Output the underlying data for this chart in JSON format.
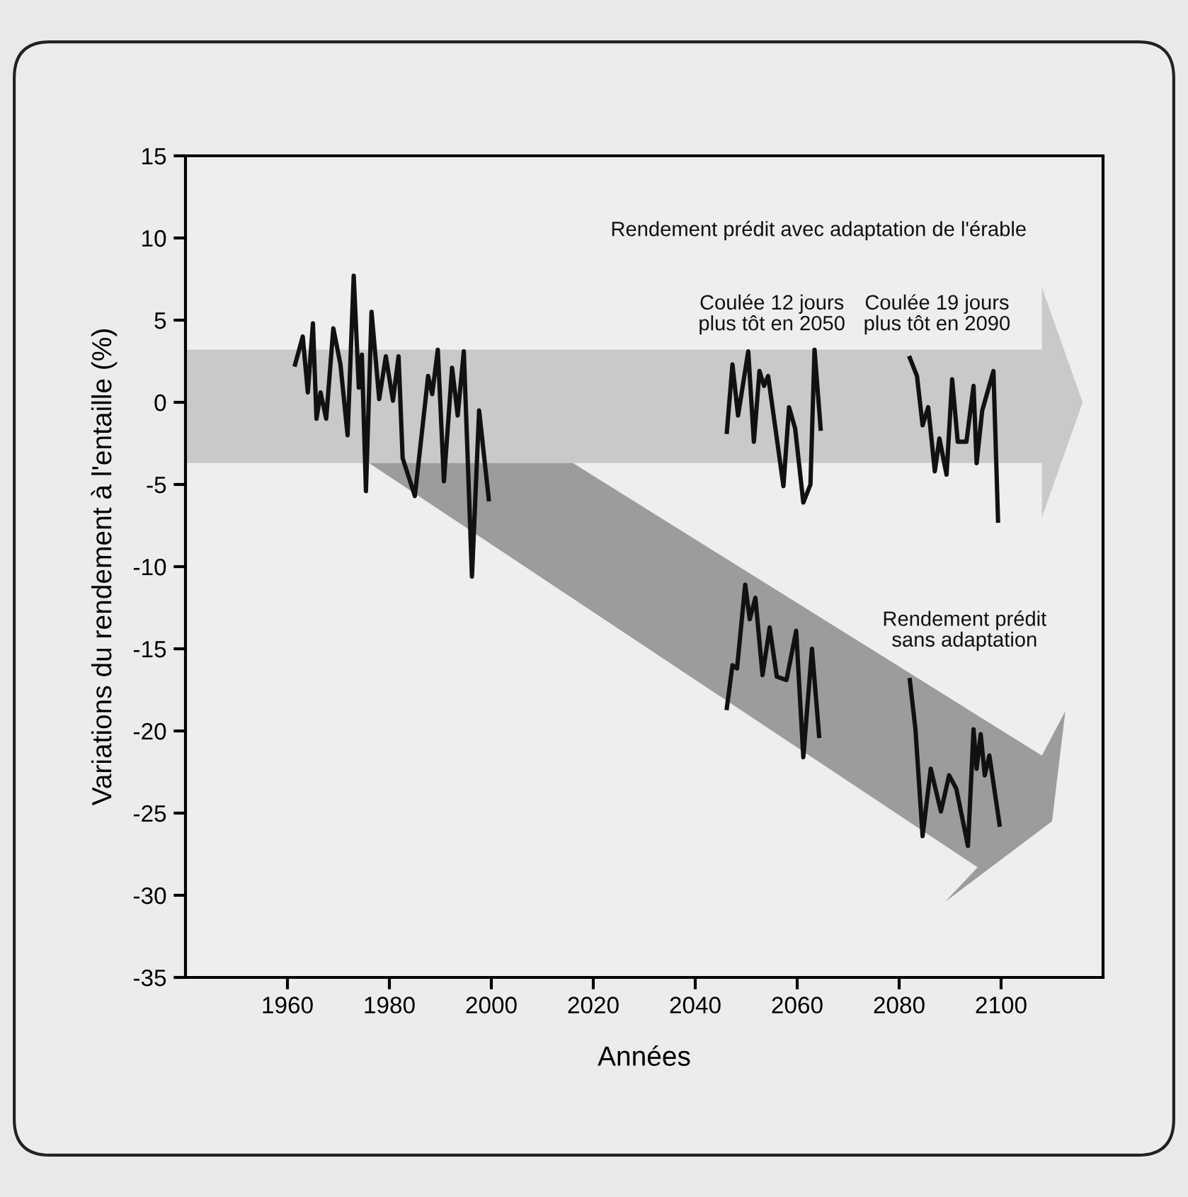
{
  "chart_data": {
    "type": "line",
    "xlabel": "Années",
    "ylabel": "Variations du rendement à l'entaille (%)",
    "xlim": [
      1940,
      2120
    ],
    "xticks": [
      1960,
      1980,
      2000,
      2020,
      2040,
      2060,
      2080,
      2100
    ],
    "ylim": [
      -35,
      15
    ],
    "yticks": [
      -35,
      -30,
      -25,
      -20,
      -15,
      -10,
      -5,
      0,
      5,
      10,
      15
    ],
    "grid": false,
    "legend": false,
    "line_style": "solid",
    "marker": "none",
    "annotations": [
      "Rendement prédit avec adaptation de l'érable",
      "Coulée 12 jours\nplus tôt en 2050",
      "Coulée 19 jours\nplus tôt en 2090",
      "Rendement prédit\nsans adaptation"
    ],
    "series": [
      {
        "color": "#111111",
        "x": [
          1961.5,
          1963,
          1964,
          1965,
          1965.7,
          1966.5,
          1967.6,
          1969,
          1970.4,
          1971.8,
          1973,
          1974,
          1974.6,
          1975.4,
          1976.5,
          1978,
          1979.3,
          1980.7,
          1981.8,
          1982.6,
          1985,
          1987.6,
          1988.4,
          1989.5,
          1990.7,
          1992.3,
          1993.4,
          1994.6,
          1996.2,
          1997.6,
          1999.5
        ],
        "values": [
          2.3,
          4.0,
          0.6,
          4.8,
          -1.0,
          0.6,
          -1.0,
          4.5,
          2.3,
          -2.0,
          7.7,
          0.9,
          2.9,
          -5.4,
          5.5,
          0.2,
          2.8,
          0.1,
          2.8,
          -3.4,
          -5.7,
          1.6,
          0.5,
          3.2,
          -4.8,
          2.1,
          -0.8,
          3.1,
          -10.6,
          -0.5,
          -5.9
        ]
      },
      {
        "color": "#111111",
        "x": [
          2046.2,
          2047.3,
          2048.4,
          2050.4,
          2051.5,
          2052.6,
          2053.5,
          2054.3,
          2057.3,
          2058.4,
          2059.6,
          2061.2,
          2062.6,
          2063.4,
          2064.6
        ],
        "values": [
          -1.8,
          2.3,
          -0.8,
          3.1,
          -2.4,
          1.9,
          1.0,
          1.6,
          -5.1,
          -0.3,
          -1.6,
          -6.1,
          -5.0,
          3.2,
          -1.6
        ]
      },
      {
        "color": "#111111",
        "x": [
          2082.1,
          2083.5,
          2084.6,
          2085.7,
          2087,
          2087.9,
          2089.3,
          2090.4,
          2091.5,
          2093.2,
          2094.6,
          2095.2,
          2096.3,
          2098.5,
          2099.4
        ],
        "values": [
          2.7,
          1.6,
          -1.4,
          -0.3,
          -4.2,
          -2.2,
          -4.4,
          1.4,
          -2.4,
          -2.4,
          1.0,
          -3.7,
          -0.5,
          1.9,
          -7.2
        ]
      },
      {
        "color": "#111111",
        "x": [
          2046.2,
          2047.3,
          2048.2,
          2049.8,
          2050.7,
          2051.8,
          2053.2,
          2054.6,
          2056,
          2057.9,
          2059.8,
          2061.2,
          2062.9,
          2064.3
        ],
        "values": [
          -18.6,
          -16.0,
          -16.2,
          -11.1,
          -13.2,
          -11.9,
          -16.6,
          -13.7,
          -16.7,
          -16.9,
          -13.9,
          -21.6,
          -15.0,
          -20.3
        ]
      },
      {
        "color": "#111111",
        "x": [
          2082.1,
          2083.2,
          2084.6,
          2086.2,
          2088.2,
          2089.8,
          2091.2,
          2093.5,
          2094.6,
          2095.2,
          2096,
          2096.8,
          2097.7,
          2099.7
        ],
        "values": [
          -16.9,
          -19.9,
          -26.4,
          -22.3,
          -24.9,
          -22.7,
          -23.5,
          -27.0,
          -19.9,
          -22.3,
          -20.2,
          -22.7,
          -21.5,
          -25.7
        ]
      }
    ]
  }
}
